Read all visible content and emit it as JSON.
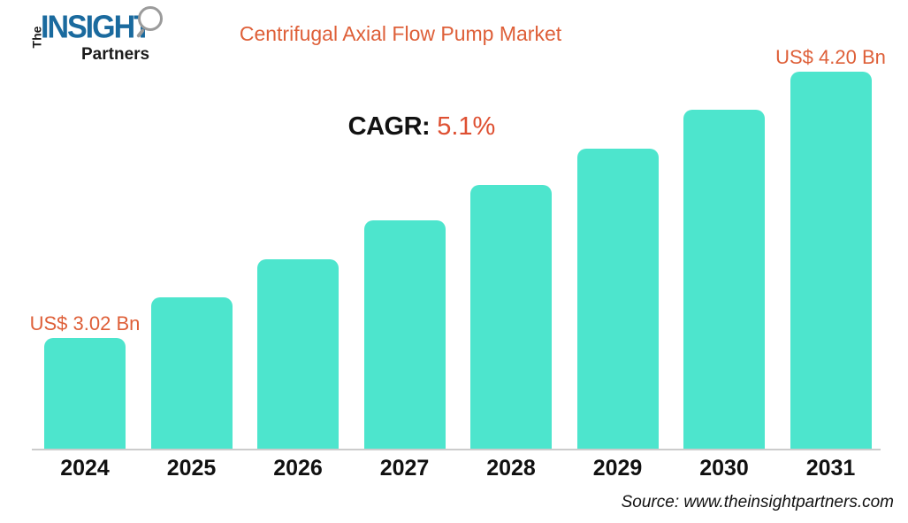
{
  "logo": {
    "the": "The",
    "insight": "INSIGHT",
    "partners": "Partners"
  },
  "title": "Centrifugal Axial Flow Pump Market",
  "cagr": {
    "label": "CAGR:",
    "value": "5.1%"
  },
  "chart_data": {
    "type": "bar",
    "title": "Centrifugal Axial Flow Pump Market",
    "categories": [
      "2024",
      "2025",
      "2026",
      "2027",
      "2028",
      "2029",
      "2030",
      "2031"
    ],
    "values": [
      3.02,
      3.2,
      3.37,
      3.54,
      3.7,
      3.86,
      4.03,
      4.2
    ],
    "unit": "US$ Bn",
    "annotations": {
      "first": "US$ 3.02 Bn",
      "last": "US$ 4.20 Bn"
    },
    "xlabel": "",
    "ylabel": "",
    "ylim": [
      2.53,
      4.2
    ],
    "grid": false,
    "legend": false,
    "bar_color": "#4de5cd"
  },
  "source": "Source: www.theinsightpartners.com",
  "colors": {
    "accent_orange": "#de5f38",
    "bar_teal": "#4de5cd",
    "logo_blue": "#1a6a9e",
    "text_black": "#111111",
    "axis_gray": "#cccccc"
  }
}
